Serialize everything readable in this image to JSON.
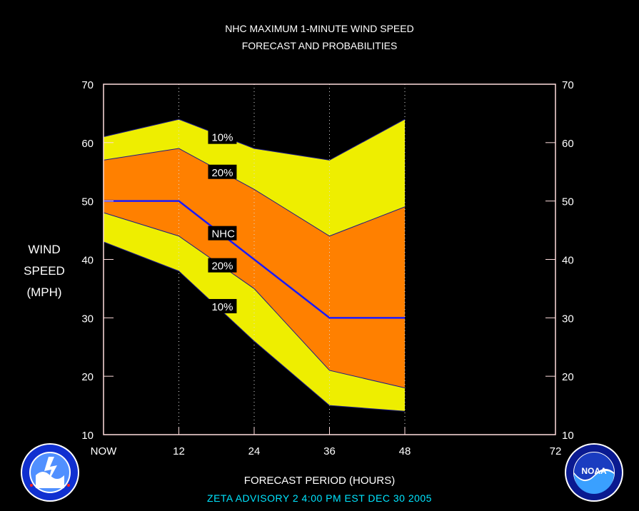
{
  "header": {
    "title_line1": "NHC MAXIMUM 1-MINUTE WIND SPEED",
    "title_line2": "FORECAST AND PROBABILITIES"
  },
  "axes": {
    "ylabel_lines": [
      "WIND",
      "SPEED",
      "(MPH)"
    ],
    "xlabel": "FORECAST PERIOD (HOURS)"
  },
  "footer": {
    "advisory": "ZETA   ADVISORY  2  4:00  PM  EST  DEC  30  2005"
  },
  "logos": {
    "left": "nws-logo",
    "right": "noaa-logo",
    "right_text": "NOAA"
  },
  "colors": {
    "background": "#000000",
    "plot_border": "#ffdddd",
    "band_10": "#eeee00",
    "band_20": "#ff8000",
    "nhc_line": "#1a1aff",
    "footer_text": "#00e5ff"
  },
  "chart_data": {
    "type": "area",
    "title": "NHC MAXIMUM 1-MINUTE WIND SPEED FORECAST AND PROBABILITIES",
    "xlabel": "FORECAST PERIOD (HOURS)",
    "ylabel": "WIND SPEED (MPH)",
    "x": [
      0,
      12,
      24,
      36,
      48
    ],
    "x_ticks": [
      0,
      12,
      24,
      36,
      48,
      72
    ],
    "x_tick_labels": [
      "NOW",
      "12",
      "24",
      "36",
      "48",
      "72"
    ],
    "xlim": [
      0,
      72
    ],
    "ylim": [
      10,
      70
    ],
    "y_ticks": [
      10,
      20,
      30,
      40,
      50,
      60,
      70
    ],
    "series": [
      {
        "name": "10%",
        "role": "upper",
        "values": [
          61,
          64,
          59,
          57,
          64
        ]
      },
      {
        "name": "20%",
        "role": "upper",
        "values": [
          57,
          59,
          52,
          44,
          49
        ]
      },
      {
        "name": "NHC",
        "role": "forecast",
        "values": [
          50,
          50,
          40,
          30,
          30
        ]
      },
      {
        "name": "20%",
        "role": "lower",
        "values": [
          48,
          44,
          35,
          21,
          18
        ]
      },
      {
        "name": "10%",
        "role": "lower",
        "values": [
          43,
          38,
          26,
          15,
          14
        ]
      }
    ],
    "band_labels": [
      {
        "text": "10%",
        "x": 17,
        "y": 61
      },
      {
        "text": "20%",
        "x": 17,
        "y": 55
      },
      {
        "text": "NHC",
        "x": 17,
        "y": 44.5
      },
      {
        "text": "20%",
        "x": 17,
        "y": 39
      },
      {
        "text": "10%",
        "x": 17,
        "y": 32
      }
    ],
    "grid": "vertical dotted at forecast hours"
  }
}
